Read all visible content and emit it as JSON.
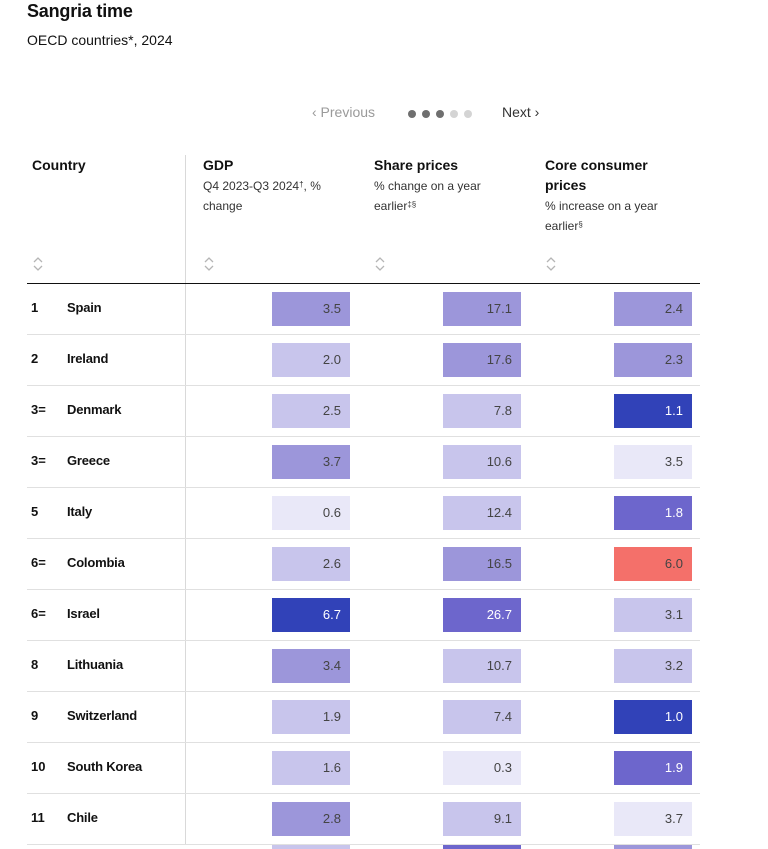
{
  "title": "Sangria time",
  "subtitle": "OECD countries*, 2024",
  "pager": {
    "prev": "‹ Previous",
    "next": "Next ›",
    "pages": 5,
    "current_page": 3
  },
  "columns": {
    "country": {
      "label": "Country"
    },
    "gdp": {
      "label": "GDP",
      "sub_pre": "Q4 2023-Q3 2024",
      "sub_mark": "†",
      "sub_post": ", % change"
    },
    "shares": {
      "label": "Share prices",
      "sub_pre": "% change on a year earlier",
      "sub_mark": "‡§",
      "sub_post": ""
    },
    "core": {
      "label": "Core consumer prices",
      "sub_pre": "% increase on a year earlier",
      "sub_mark": "§",
      "sub_post": ""
    }
  },
  "rows": [
    {
      "rank": "1",
      "country": "Spain",
      "gdp": "3.5",
      "shares": "17.1",
      "core": "2.4"
    },
    {
      "rank": "2",
      "country": "Ireland",
      "gdp": "2.0",
      "shares": "17.6",
      "core": "2.3"
    },
    {
      "rank": "3=",
      "country": "Denmark",
      "gdp": "2.5",
      "shares": "7.8",
      "core": "1.1"
    },
    {
      "rank": "3=",
      "country": "Greece",
      "gdp": "3.7",
      "shares": "10.6",
      "core": "3.5"
    },
    {
      "rank": "5",
      "country": "Italy",
      "gdp": "0.6",
      "shares": "12.4",
      "core": "1.8"
    },
    {
      "rank": "6=",
      "country": "Colombia",
      "gdp": "2.6",
      "shares": "16.5",
      "core": "6.0"
    },
    {
      "rank": "6=",
      "country": "Israel",
      "gdp": "6.7",
      "shares": "26.7",
      "core": "3.1"
    },
    {
      "rank": "8",
      "country": "Lithuania",
      "gdp": "3.4",
      "shares": "10.7",
      "core": "3.2"
    },
    {
      "rank": "9",
      "country": "Switzerland",
      "gdp": "1.9",
      "shares": "7.4",
      "core": "1.0"
    },
    {
      "rank": "10",
      "country": "South Korea",
      "gdp": "1.6",
      "shares": "0.3",
      "core": "1.9"
    },
    {
      "rank": "11",
      "country": "Chile",
      "gdp": "2.8",
      "shares": "9.1",
      "core": "3.7"
    }
  ],
  "colors": {
    "very_light": "#e9e8f8",
    "light": "#c8c5ec",
    "medium": "#9c96da",
    "strong": "#6d66cc",
    "dark": "#3142b8",
    "coral": "#f4706a",
    "grey": "#d0d0e8"
  }
}
